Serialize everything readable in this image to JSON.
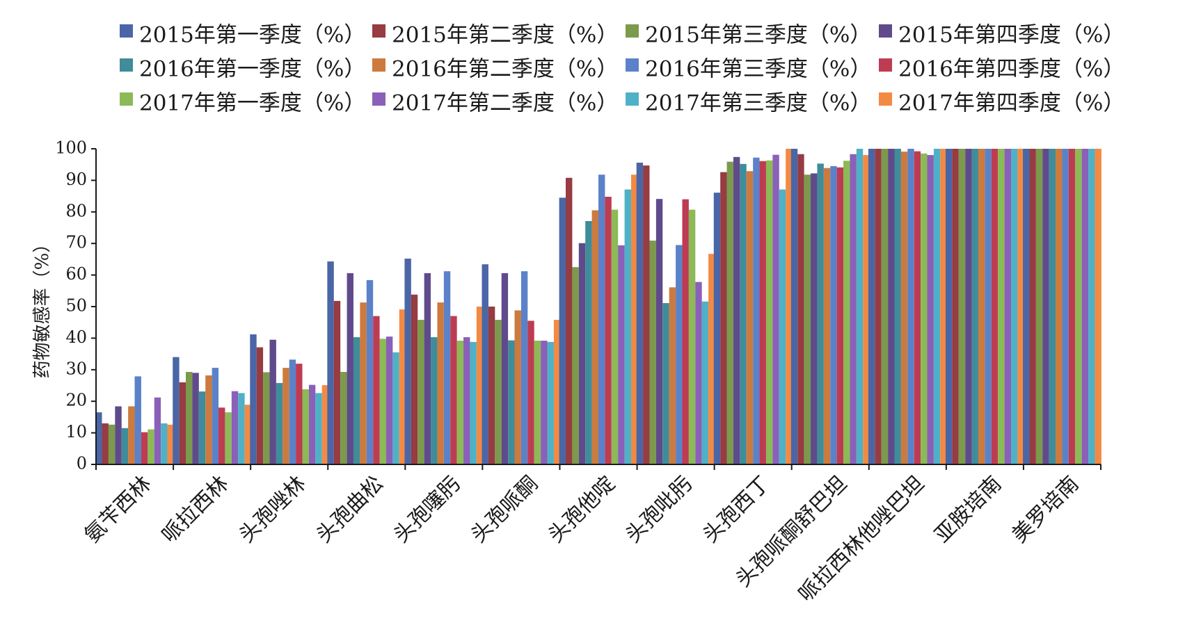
{
  "chart_data": {
    "type": "bar",
    "ylabel": "药物敏感率（%）",
    "ylim": [
      0,
      100
    ],
    "yticks": [
      0,
      10,
      20,
      30,
      40,
      50,
      60,
      70,
      80,
      90,
      100
    ],
    "grid": false,
    "legend_position": "top",
    "categories": [
      "氨苄西林",
      "哌拉西林",
      "头孢唑林",
      "头孢曲松",
      "头孢噻肟",
      "头孢哌酮",
      "头孢他啶",
      "头孢吡肟",
      "头孢西丁",
      "头孢哌酮舒巴坦",
      "哌拉西林他唑巴坦",
      "亚胺培南",
      "美罗培南"
    ],
    "series": [
      {
        "name": "2015年第一季度（%）",
        "color": "#4a66a6",
        "values": [
          16.5,
          34,
          41.2,
          64.3,
          65.2,
          63.4,
          84.5,
          95.6,
          86.1,
          100,
          100,
          100,
          100
        ]
      },
      {
        "name": "2015年第二季度（%）",
        "color": "#963c42",
        "values": [
          13,
          26,
          37.1,
          51.8,
          53.8,
          50,
          90.8,
          94.7,
          92.6,
          98.3,
          100,
          100,
          100
        ]
      },
      {
        "name": "2015年第三季度（%）",
        "color": "#7b9a4c",
        "values": [
          12.6,
          29.3,
          29.2,
          29.3,
          45.8,
          45.8,
          62.5,
          70.9,
          95.9,
          91.8,
          100,
          100,
          100
        ]
      },
      {
        "name": "2015年第四季度（%）",
        "color": "#5f4b8b",
        "values": [
          18.4,
          29,
          39.5,
          60.6,
          60.6,
          60.6,
          70.1,
          84.1,
          97.4,
          92.2,
          100,
          100,
          100
        ]
      },
      {
        "name": "2016年第一季度（%）",
        "color": "#3f8c9a",
        "values": [
          11.5,
          23.1,
          25.8,
          40.3,
          40.3,
          39.3,
          77.1,
          51.1,
          95.2,
          95.3,
          100,
          100,
          100
        ]
      },
      {
        "name": "2016年第二季度（%）",
        "color": "#cc7a3e",
        "values": [
          18.4,
          28.2,
          30.6,
          51.3,
          51.3,
          48.8,
          80.5,
          56.1,
          92.9,
          93.9,
          99.1,
          100,
          100
        ]
      },
      {
        "name": "2016年第三季度（%）",
        "color": "#5b82c8",
        "values": [
          27.9,
          30.6,
          33.2,
          58.4,
          61.2,
          61.2,
          91.8,
          69.5,
          97.2,
          94.5,
          100,
          100,
          100
        ]
      },
      {
        "name": "2016年第四季度（%）",
        "color": "#be3c52",
        "values": [
          10.2,
          18,
          31.9,
          47,
          47,
          45.5,
          84.8,
          84,
          96.1,
          94.1,
          99.2,
          100,
          100
        ]
      },
      {
        "name": "2017年第一季度（%）",
        "color": "#8cba56",
        "values": [
          11.1,
          16.5,
          23.8,
          39.8,
          39.2,
          39.2,
          80.7,
          80.7,
          96.3,
          96.2,
          98.5,
          100,
          100
        ]
      },
      {
        "name": "2017年第二季度（%）",
        "color": "#8a60b8",
        "values": [
          21.2,
          23.2,
          25.2,
          40.5,
          40.3,
          39.2,
          69.4,
          57.8,
          98.1,
          98.3,
          98,
          100,
          100
        ]
      },
      {
        "name": "2017年第三季度（%）",
        "color": "#4fb1c6",
        "values": [
          13,
          22.6,
          22.6,
          35.5,
          38.8,
          38.8,
          87.1,
          51.6,
          87.1,
          100,
          100,
          100,
          100
        ]
      },
      {
        "name": "2017年第四季度（%）",
        "color": "#f38a44",
        "values": [
          12.6,
          18.9,
          25.1,
          49.1,
          50,
          45.8,
          91.8,
          66.7,
          100,
          98,
          100,
          100,
          100
        ]
      }
    ]
  }
}
